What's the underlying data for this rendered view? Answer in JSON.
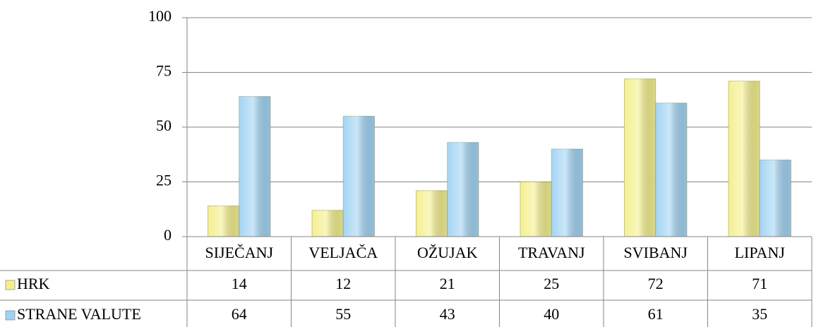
{
  "chart_data": {
    "type": "bar",
    "categories": [
      "SIJEČANJ",
      "VELJAČA",
      "OŽUJAK",
      "TRAVANJ",
      "SVIBANJ",
      "LIPANJ"
    ],
    "series": [
      {
        "name": "HRK",
        "color": "#f4ef8a",
        "values": [
          14,
          12,
          21,
          25,
          72,
          71
        ]
      },
      {
        "name": "STRANE VALUTE",
        "color": "#9fd3f3",
        "values": [
          64,
          55,
          43,
          40,
          61,
          35
        ]
      }
    ],
    "ylim": [
      0,
      100
    ],
    "yticks": [
      0,
      25,
      50,
      75,
      100
    ],
    "grid": true,
    "data_table": true
  }
}
